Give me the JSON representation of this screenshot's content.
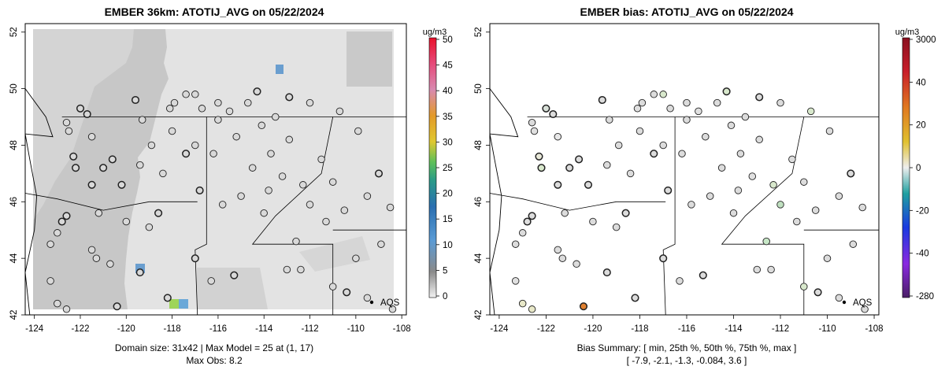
{
  "panels": [
    {
      "title": "EMBER 36km: ATOTIJ_AVG on 05/22/2024",
      "colorbar_unit": "ug/m3",
      "colorbar_ticks": [
        "50",
        "45",
        "40",
        "35",
        "30",
        "25",
        "20",
        "15",
        "10",
        "5",
        "0"
      ],
      "footer_line1": "Domain size: 31x42 | Max Model = 25 at (1, 17)",
      "footer_line2": "Max Obs: 8.2",
      "legend_label": "AQS"
    },
    {
      "title": "EMBER bias: ATOTIJ_AVG on 05/22/2024",
      "colorbar_unit": "ug/m3",
      "colorbar_ticks": [
        "3000",
        "40",
        "20",
        "0",
        "-20",
        "-40",
        "-280"
      ],
      "footer_line1": "Bias Summary: [ min, 25th %, 50th %, 75th %, max ]",
      "footer_line2": "[ -7.9,   -2.1,   -1.3,   -0.084,   3.6 ]",
      "legend_label": "AQS"
    }
  ],
  "axes": {
    "x_ticks": [
      "-124",
      "-122",
      "-120",
      "-118",
      "-116",
      "-114",
      "-112",
      "-110",
      "-108"
    ],
    "y_ticks": [
      "42",
      "44",
      "46",
      "48",
      "50",
      "52"
    ],
    "x_range": [
      -124.4,
      -107.8
    ],
    "y_range": [
      42.0,
      52.3
    ]
  },
  "colors": {
    "land_background": "#e3e3e3",
    "ocean_shading": "#c7c7c7",
    "station_fill": "#dcdcdc",
    "station_stroke": "#222222"
  }
}
